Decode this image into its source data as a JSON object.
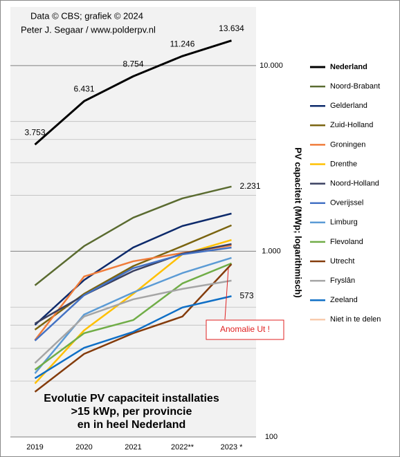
{
  "chart_data": {
    "type": "line",
    "source": [
      "Data © CBS;  grafiek © 2024",
      "Peter J. Segaar / www.polderpv.nl"
    ],
    "title": [
      "Evolutie  PV capaciteit installaties",
      ">15 kWp, per provincie",
      "en in  heel Nederland"
    ],
    "ylabel": "PV capaciteit (MWp; logarithmisch)",
    "annotation": "Anomalie Ut !",
    "log_y": true,
    "grid": true,
    "legend": "right",
    "categories": [
      "2019",
      "2020",
      "2021",
      "2022**",
      "2023 *"
    ],
    "ylim": [
      100,
      20000
    ],
    "yticks": [
      100,
      {
        "value": 1000,
        "label": "1.000"
      },
      {
        "value": 10000,
        "label": "10.000"
      }
    ],
    "yminor": [
      200,
      300,
      400,
      500,
      2000,
      3000,
      4000,
      5000
    ],
    "series": [
      {
        "name": "Nederland",
        "color": "#000000",
        "values": [
          3753,
          6431,
          8754,
          11246,
          13634
        ],
        "value_labels": [
          "3.753",
          "6.431",
          "8.754",
          "11.246",
          "13.634"
        ]
      },
      {
        "name": "Noord-Brabant",
        "color": "#5a6b30",
        "values": [
          655,
          1066,
          1517,
          1927,
          2231
        ],
        "value_labels": [
          null,
          null,
          null,
          null,
          "2.231"
        ]
      },
      {
        "name": "Gelderland",
        "color": "#0d2a6b",
        "values": [
          401,
          700,
          1048,
          1368,
          1596
        ]
      },
      {
        "name": "Zuid-Holland",
        "color": "#7a6410",
        "values": [
          378,
          590,
          832,
          1066,
          1380
        ]
      },
      {
        "name": "Groningen",
        "color": "#f07c3a",
        "values": [
          332,
          731,
          883,
          979,
          1076
        ]
      },
      {
        "name": "Drenthe",
        "color": "#ffc000",
        "values": [
          194,
          375,
          590,
          962,
          1151
        ]
      },
      {
        "name": "Noord-Holland",
        "color": "#3a4060",
        "values": [
          408,
          580,
          783,
          970,
          1094
        ]
      },
      {
        "name": "Overijssel",
        "color": "#4472c4",
        "values": [
          330,
          580,
          811,
          962,
          1048
        ]
      },
      {
        "name": "Limburg",
        "color": "#5b9bd5",
        "values": [
          220,
          456,
          600,
          763,
          922
        ]
      },
      {
        "name": "Flevoland",
        "color": "#70ad47",
        "values": [
          230,
          362,
          426,
          671,
          861
        ]
      },
      {
        "name": "Utrecht",
        "color": "#843c0c",
        "values": [
          175,
          280,
          362,
          445,
          853
        ]
      },
      {
        "name": "Fryslân",
        "color": "#a5a5a5",
        "values": [
          250,
          445,
          551,
          627,
          695
        ]
      },
      {
        "name": "Zeeland",
        "color": "#0f6fc6",
        "values": [
          207,
          302,
          368,
          498,
          573
        ],
        "value_labels": [
          null,
          null,
          null,
          null,
          "573"
        ]
      },
      {
        "name": "Niet in te delen",
        "color": "#f8cbad",
        "values": [
          null,
          null,
          null,
          null,
          null
        ]
      }
    ]
  }
}
